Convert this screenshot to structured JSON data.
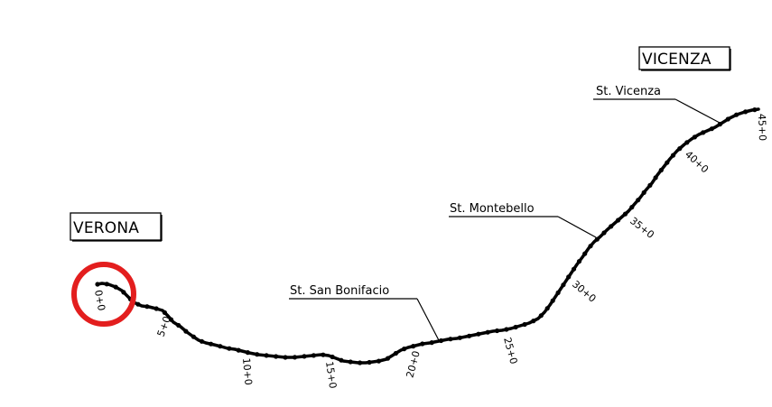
{
  "cities": {
    "start": "VERONA",
    "end": "VICENZA"
  },
  "stations": [
    {
      "label": "St. San Bonifacio"
    },
    {
      "label": "St. Montebello"
    },
    {
      "label": "St. Vicenza"
    }
  ],
  "chainages": [
    "0+0",
    "5+0",
    "10+0",
    "15+0",
    "20+0",
    "25+0",
    "30+0",
    "35+0",
    "40+0",
    "45+0"
  ],
  "colors": {
    "line": "#000000",
    "highlight": "#e31e1e",
    "background": "#ffffff"
  }
}
